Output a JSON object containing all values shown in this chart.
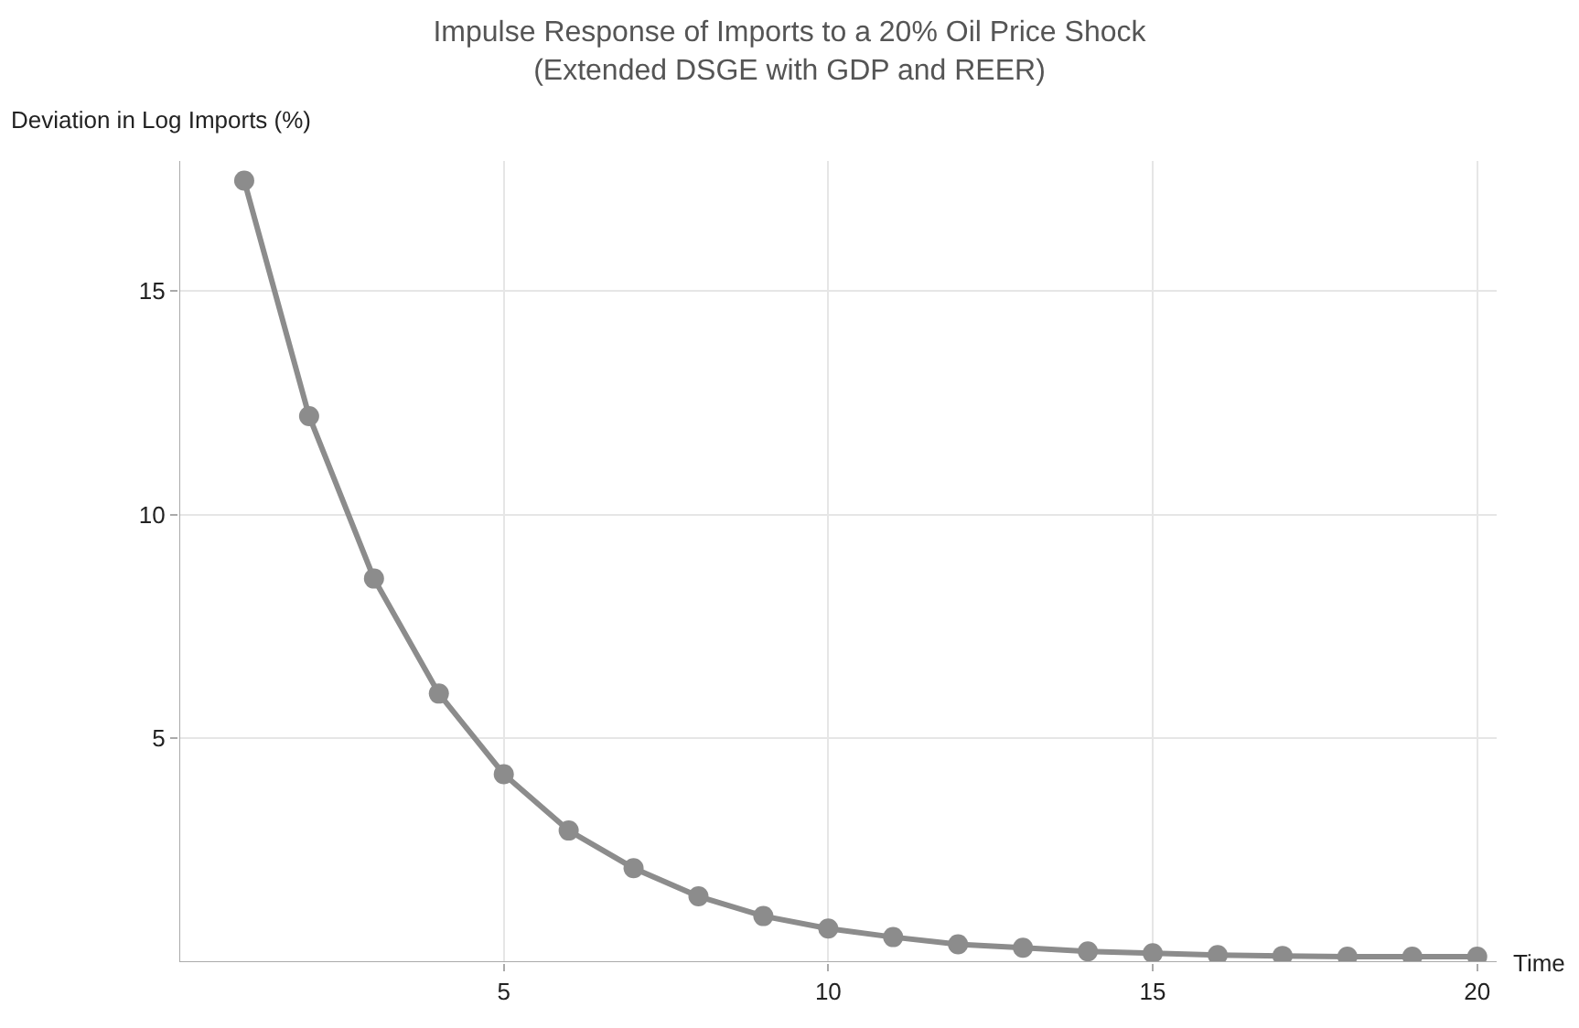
{
  "chart_data": {
    "type": "line",
    "title": "Impulse Response of Imports to a 20% Oil Price Shock\n(Extended DSGE with GDP and REER)",
    "xlabel": "Time",
    "ylabel": "Deviation in Log Imports (%)",
    "x": [
      1,
      2,
      3,
      4,
      5,
      6,
      7,
      8,
      9,
      10,
      11,
      12,
      13,
      14,
      15,
      16,
      17,
      18,
      19,
      20
    ],
    "series": [
      {
        "color": "#8c8c8c",
        "values": [
          17.46,
          12.2,
          8.57,
          6.0,
          4.2,
          2.94,
          2.1,
          1.47,
          1.03,
          0.75,
          0.56,
          0.4,
          0.32,
          0.24,
          0.2,
          0.16,
          0.14,
          0.12,
          0.12,
          0.12
        ]
      }
    ],
    "xlim": [
      0,
      20.3
    ],
    "ylim": [
      0,
      17.9
    ],
    "xticks": [
      5,
      10,
      15,
      20
    ],
    "yticks": [
      5,
      10,
      15
    ],
    "grid": true,
    "marker": "circle",
    "line_style": "solid"
  }
}
